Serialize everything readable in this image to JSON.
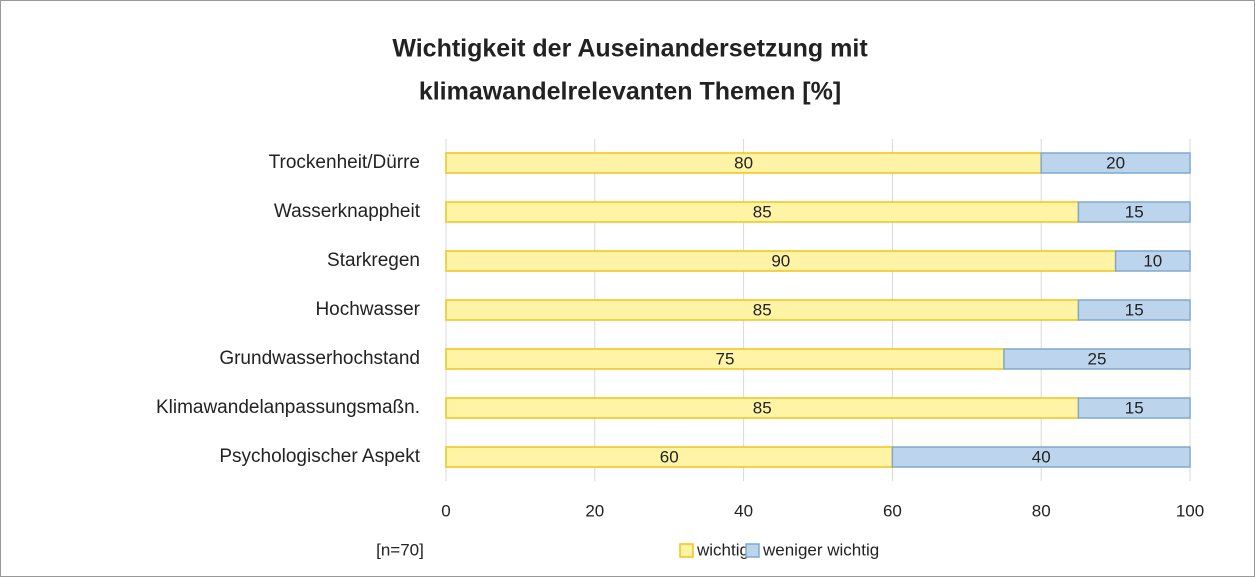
{
  "chart_data": {
    "type": "stacked_barh",
    "title": [
      "Wichtigkeit der Auseinandersetzung mit",
      "klimawandelrelevanten Themen [%]"
    ],
    "annotation": "[n=70]",
    "categories": [
      "Trockenheit/Dürre",
      "Wasserknappheit",
      "Starkregen",
      "Hochwasser",
      "Grundwasserhochstand",
      "Klimawandelanpassungsmaßn.",
      "Psychologischer Aspekt"
    ],
    "series": [
      {
        "name": "wichtig",
        "color": "#fff3a6",
        "stroke": "#f0c419",
        "values": [
          80,
          85,
          90,
          85,
          75,
          85,
          60
        ]
      },
      {
        "name": "weniger wichtig",
        "color": "#bcd5ec",
        "stroke": "#7fa8cf",
        "values": [
          20,
          15,
          10,
          15,
          25,
          15,
          40
        ]
      }
    ],
    "xlim": [
      0,
      100
    ],
    "xticks": [
      0,
      20,
      40,
      60,
      80,
      100
    ],
    "grid": true,
    "legend": "bottom"
  }
}
